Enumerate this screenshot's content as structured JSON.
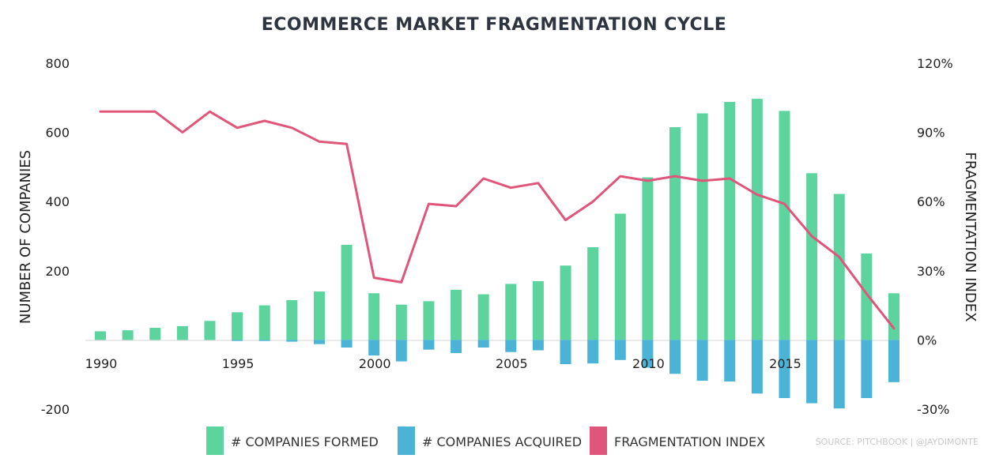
{
  "chart_data": {
    "type": "bar",
    "title": "ECOMMERCE MARKET FRAGMENTATION CYCLE",
    "ylabel": "NUMBER OF COMPANIES",
    "y2label": "FRAGMENTATION INDEX",
    "ylim": [
      -200,
      800
    ],
    "y2lim": [
      -30,
      120
    ],
    "y_ticks": [
      "800",
      "600",
      "400",
      "200",
      "-200"
    ],
    "y2_ticks": [
      "120%",
      "90%",
      "60%",
      "30%",
      "0%",
      "-30%"
    ],
    "x": [
      1990,
      1991,
      1992,
      1993,
      1994,
      1995,
      1996,
      1997,
      1998,
      1999,
      2000,
      2001,
      2002,
      2003,
      2004,
      2005,
      2006,
      2007,
      2008,
      2009,
      2010,
      2011,
      2012,
      2013,
      2014,
      2015,
      2016,
      2017,
      2018,
      2019
    ],
    "x_ticks": [
      "1990",
      "1995",
      "2000",
      "2005",
      "2010",
      "2015"
    ],
    "series": [
      {
        "name": "# COMPANIES FORMED",
        "type": "bar",
        "color": "#5dd39e",
        "values": [
          25,
          28,
          35,
          40,
          55,
          80,
          100,
          115,
          140,
          275,
          135,
          102,
          112,
          145,
          132,
          162,
          170,
          215,
          268,
          365,
          470,
          615,
          655,
          688,
          697,
          662,
          482,
          422,
          250,
          135
        ]
      },
      {
        "name": "# COMPANIES ACQUIRED",
        "type": "bar",
        "color": "#4ab3d6",
        "values": [
          0,
          0,
          0,
          0,
          0,
          -3,
          -3,
          -5,
          -12,
          -22,
          -45,
          -62,
          -28,
          -38,
          -22,
          -35,
          -30,
          -70,
          -68,
          -58,
          -80,
          -98,
          -118,
          -120,
          -155,
          -168,
          -183,
          -198,
          -168,
          -122
        ]
      },
      {
        "name": "FRAGMENTATION INDEX",
        "type": "line",
        "axis": "right",
        "color": "#e0557a",
        "values": [
          99,
          99,
          99,
          90,
          99,
          92,
          95,
          92,
          86,
          85,
          27,
          25,
          59,
          58,
          70,
          66,
          68,
          52,
          60,
          71,
          69,
          71,
          69,
          70,
          63,
          59,
          45,
          36,
          20,
          5
        ]
      }
    ],
    "legend_position": "bottom",
    "grid": false,
    "source": "SOURCE: PITCHBOOK | @JAYDIMONTE"
  }
}
